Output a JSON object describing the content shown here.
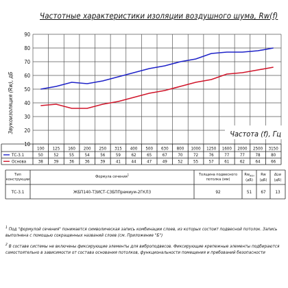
{
  "title": "Частотные характеристики изоляции воздушного шума, Rw(f)",
  "chart_data": {
    "type": "line",
    "ylabel": "Звукоизоляция (Rw), дБ",
    "xlabel": "Частота (f), Гц",
    "ylim": [
      10,
      90
    ],
    "yticks": [
      "10",
      "20",
      "30",
      "40",
      "50",
      "60",
      "70",
      "80",
      "90"
    ],
    "grid": true,
    "categories": [
      "100",
      "125",
      "160",
      "200",
      "250",
      "315",
      "400",
      "500",
      "630",
      "800",
      "1000",
      "1250",
      "1600",
      "2000",
      "2500",
      "3150"
    ],
    "series": [
      {
        "name": "ТС-3.1",
        "color": "#1e22c8",
        "values": [
          50,
          52,
          55,
          54,
          56,
          59,
          62,
          65,
          67,
          70,
          72,
          76,
          77,
          77,
          78,
          80
        ]
      },
      {
        "name": "Основа",
        "color": "#d0152a",
        "values": [
          38,
          39,
          36,
          36,
          39,
          41,
          44,
          47,
          49,
          52,
          55,
          57,
          61,
          62,
          64,
          66
        ]
      }
    ]
  },
  "table": {
    "h_type": "Тип конструкции",
    "h_formula": "Формула сечения",
    "h_formula_sup": "1",
    "h_thick": "Толщина подвесного потолка (мм)",
    "h_rw": "Rw",
    "h_rw_sub": "осн",
    "h_rw_unit": "(дБ)",
    "h_rw2": "Rw",
    "h_rw2_unit": "(дБ)",
    "h_dl": "ΔLw",
    "h_dl_unit": "(дБ)",
    "row_type": "ТС-3.1",
    "row_formula": "ЖБП140-ТЗИСТ-СЗБППремиум-2ГКЛ3",
    "row_thick": "92",
    "row_rw_base": "51",
    "row_rw": "67",
    "row_dl": "13"
  },
  "footnotes": {
    "n1": "1",
    "f1": "Под \"формулой сечения\" понимается символическая запись комбинации слоев, из которых состоит подвесной потолок. Запись выполнена с помощью сокращенных названий слоев (см. Приложение \"Б\")",
    "n2": "2",
    "f2": "В составе системы не включены фиксирующие элементы для виброподвесов. Фиксирующие крепежные элементы подбираются самостоятельно в зависимости от состава основания потолков, функциональности помещения и пребований безопасности"
  }
}
